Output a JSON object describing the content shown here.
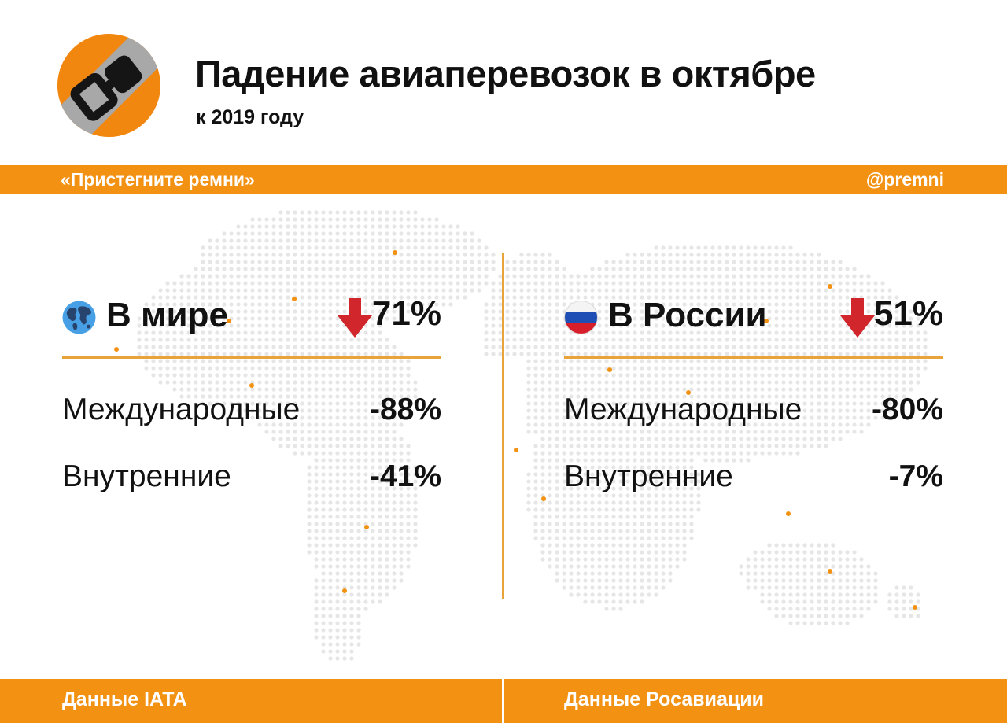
{
  "header": {
    "title": "Падение авиаперевозок в октябре",
    "subtitle": "к 2019 году"
  },
  "band": {
    "left_text": "«Пристегните ремни»",
    "right_text": "@premni"
  },
  "panels": {
    "world": {
      "flag_icon": "globe-icon",
      "name": "В мире",
      "arrow_icon": "arrow-down-icon",
      "total": "71%",
      "rows": [
        {
          "label": "Международные",
          "value": "-88%"
        },
        {
          "label": "Внутренние",
          "value": "-41%"
        }
      ]
    },
    "russia": {
      "flag_icon": "russia-flag-icon",
      "name": "В России",
      "arrow_icon": "arrow-down-icon",
      "total": "51%",
      "rows": [
        {
          "label": "Международные",
          "value": "-80%"
        },
        {
          "label": "Внутренние",
          "value": "-7%"
        }
      ]
    }
  },
  "footer": {
    "left_source": "Данные IATA",
    "right_source": "Данные Росавиации"
  },
  "colors": {
    "accent_orange": "#f39212",
    "rule_orange": "#e8a33a",
    "arrow_red": "#d0262c",
    "map_dots": "#e6e6e6",
    "map_highlight": "#f39212"
  }
}
